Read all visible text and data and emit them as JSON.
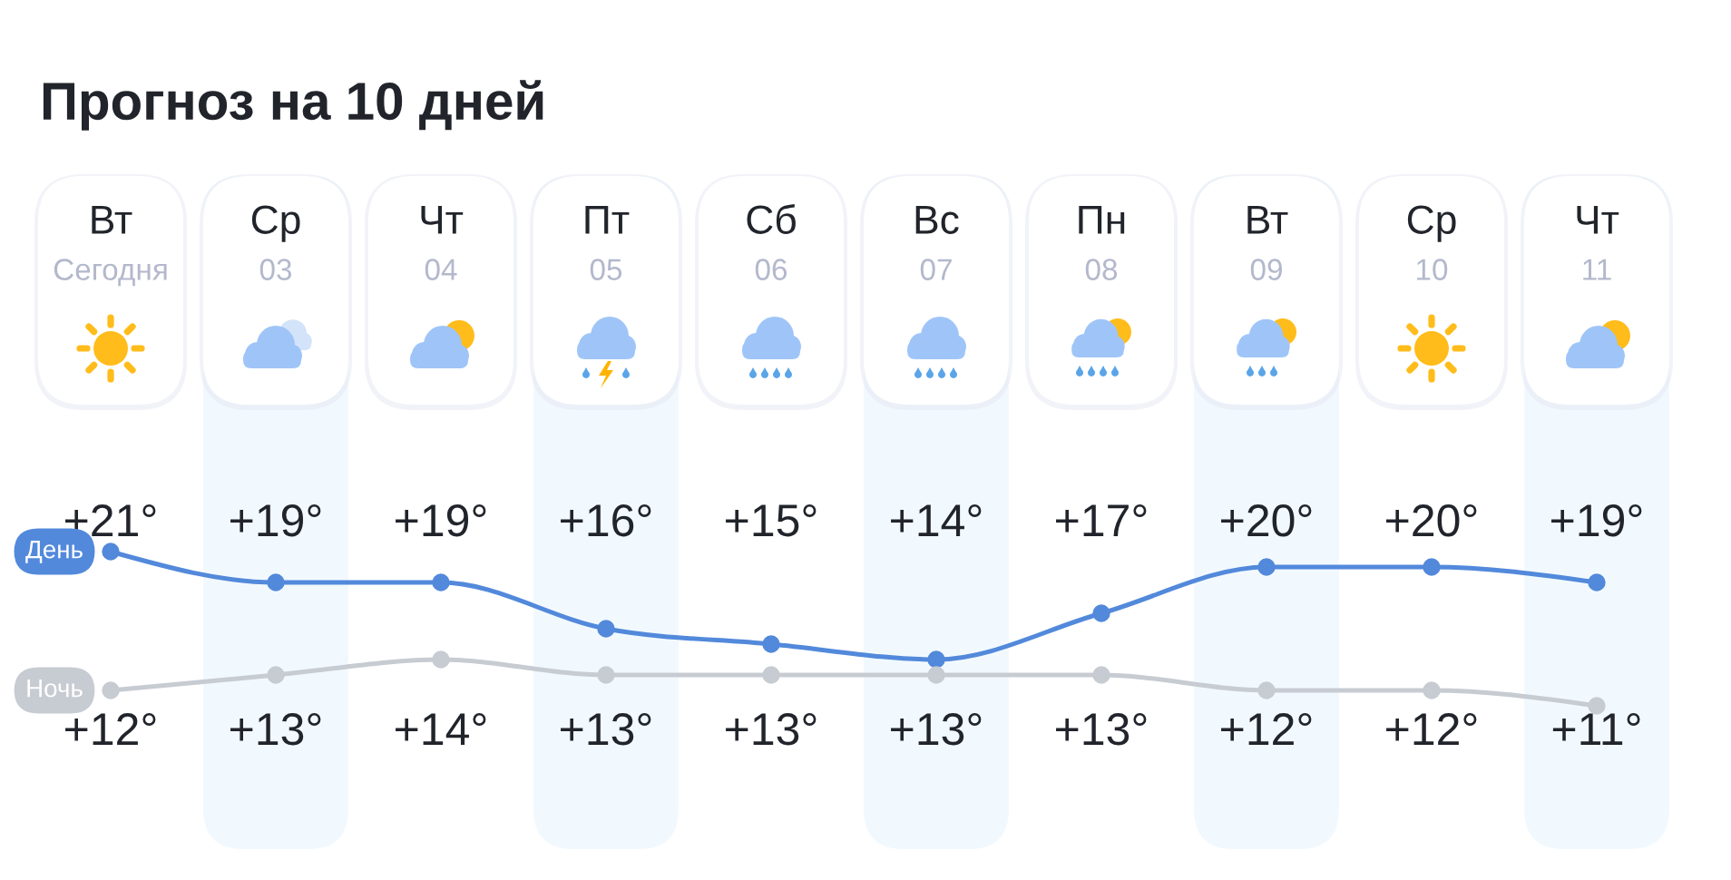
{
  "chart_data": {
    "type": "line",
    "title": "Прогноз на 10 дней",
    "categories": [
      "Вт\nСегодня",
      "Ср\n03",
      "Чт\n04",
      "Пт\n05",
      "Сб\n06",
      "Вс\n07",
      "Пн\n08",
      "Вт\n09",
      "Ср\n10",
      "Чт\n11"
    ],
    "series": [
      {
        "name": "День",
        "color": "#5289db",
        "values": [
          21,
          19,
          19,
          16,
          15,
          14,
          17,
          20,
          20,
          19
        ],
        "value_labels": [
          "+21°",
          "+19°",
          "+19°",
          "+16°",
          "+15°",
          "+14°",
          "+17°",
          "+20°",
          "+20°",
          "+19°"
        ]
      },
      {
        "name": "Ночь",
        "color": "#c7cbd2",
        "values": [
          12,
          13,
          14,
          13,
          13,
          13,
          13,
          12,
          12,
          11
        ],
        "value_labels": [
          "+12°",
          "+13°",
          "+14°",
          "+13°",
          "+13°",
          "+13°",
          "+13°",
          "+12°",
          "+12°",
          "+11°"
        ]
      }
    ],
    "bands": [
      {
        "axis": "x",
        "from": "Ср\n03",
        "to": "Ср\n03",
        "color": "#f2f9fe"
      },
      {
        "axis": "x",
        "from": "Пт\n05",
        "to": "Пт\n05",
        "color": "#f2f9fe"
      },
      {
        "axis": "x",
        "from": "Вс\n07",
        "to": "Вс\n07",
        "color": "#f2f9fe"
      },
      {
        "axis": "x",
        "from": "Вт\n09",
        "to": "Вт\n09",
        "color": "#f2f9fe"
      },
      {
        "axis": "x",
        "from": "Чт\n11",
        "to": "Чт\n11",
        "color": "#f2f9fe"
      }
    ],
    "tick_labels": "x",
    "marker": "circle",
    "line_style": "solid"
  }
}
